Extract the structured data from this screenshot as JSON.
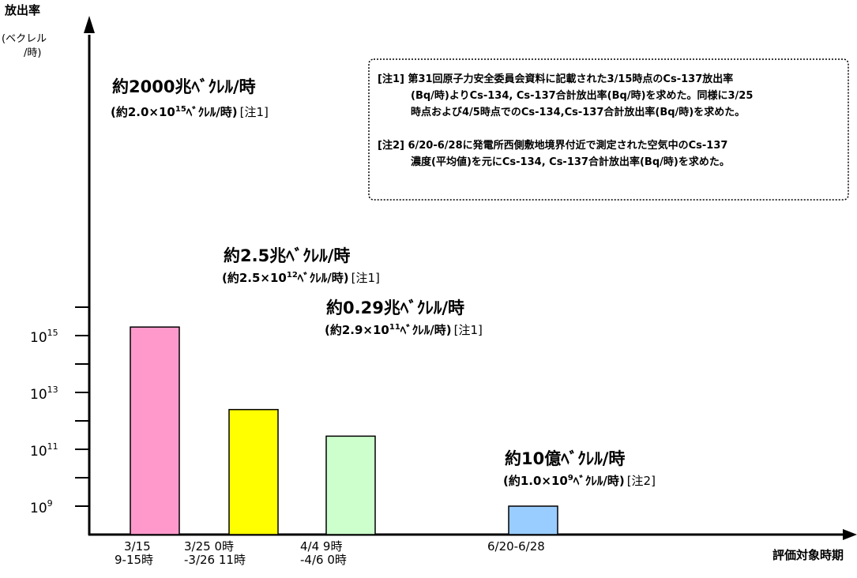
{
  "chart_data": {
    "type": "bar",
    "scale": "log",
    "ylabel": "放出率",
    "ylabel_unit": [
      "(ベクレル",
      "/時)"
    ],
    "xlabel": "評価対象時期",
    "y_ticks": [
      {
        "value": 1000000000.0,
        "base": "10",
        "exp": "9"
      },
      {
        "value": 100000000000.0,
        "base": "10",
        "exp": "11"
      },
      {
        "value": 10000000000000.0,
        "base": "10",
        "exp": "13"
      },
      {
        "value": 1000000000000000.0,
        "base": "10",
        "exp": "15"
      }
    ],
    "ylim": [
      100000000.0,
      1e+16
    ],
    "categories": [
      {
        "lines": [
          "3/15",
          "9-15時"
        ]
      },
      {
        "lines": [
          "3/25 0時",
          "-3/26 11時"
        ]
      },
      {
        "lines": [
          "4/4 9時",
          "-4/6 0時"
        ]
      },
      {
        "lines": [
          "6/20-6/28"
        ]
      }
    ],
    "values": [
      2000000000000000.0,
      2500000000000.0,
      290000000000.0,
      1000000000.0
    ],
    "colors": [
      "#ff99cc",
      "#ffff00",
      "#ccffcc",
      "#99ccff"
    ],
    "annotations": [
      {
        "main": "約2000兆ﾍﾞｸﾚﾙ/時",
        "sub_pre": "(約2.0×10",
        "sub_exp": "15",
        "sub_post": "ﾍﾞｸﾚﾙ/時)",
        "note": "[注1]"
      },
      {
        "main": "約2.5兆ﾍﾞｸﾚﾙ/時",
        "sub_pre": "(約2.5×10",
        "sub_exp": "12",
        "sub_post": "ﾍﾞｸﾚﾙ/時)",
        "note": "[注1]"
      },
      {
        "main": "約0.29兆ﾍﾞｸﾚﾙ/時",
        "sub_pre": "(約2.9×10",
        "sub_exp": "11",
        "sub_post": "ﾍﾞｸﾚﾙ/時)",
        "note": "[注1]"
      },
      {
        "main": "約10億ﾍﾞｸﾚﾙ/時",
        "sub_pre": "(約1.0×10",
        "sub_exp": "9",
        "sub_post": "ﾍﾞｸﾚﾙ/時)",
        "note": "[注2]"
      }
    ],
    "notes": [
      [
        "[注1] 第31回原子力安全委員会資料に記載された3/15時点のCs-137放出率",
        "(Bq/時)よりCs-134, Cs-137合計放出率(Bq/時)を求めた。同様に3/25",
        "時点および4/5時点でのCs-134,Cs-137合計放出率(Bq/時)を求めた。"
      ],
      [
        "[注2] 6/20-6/28に発電所西側敷地境界付近で測定された空気中のCs-137",
        "濃度(平均値)を元にCs-134, Cs-137合計放出率(Bq/時)を求めた。"
      ]
    ]
  }
}
